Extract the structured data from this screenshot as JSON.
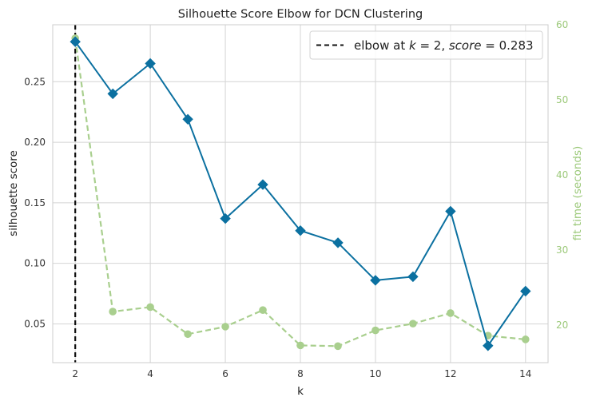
{
  "chart_data": {
    "type": "line",
    "title": "Silhouette Score Elbow for DCN Clustering",
    "xlabel": "k",
    "ylabel": "silhouette score",
    "y2label": "fit time (seconds)",
    "xlim": [
      1.4,
      14.6
    ],
    "ylim": [
      0.018,
      0.297
    ],
    "y2lim": [
      15,
      60
    ],
    "xticks": [
      2,
      4,
      6,
      8,
      10,
      12,
      14
    ],
    "yticks": [
      0.05,
      0.1,
      0.15,
      0.2,
      0.25
    ],
    "ytick_labels": [
      "0.05",
      "0.10",
      "0.15",
      "0.20",
      "0.25"
    ],
    "y2ticks": [
      20,
      30,
      40,
      50,
      60
    ],
    "grid": true,
    "legend_position": "top-right",
    "x": [
      2,
      3,
      4,
      5,
      6,
      7,
      8,
      9,
      10,
      11,
      12,
      13,
      14
    ],
    "series": [
      {
        "name": "silhouette score",
        "axis": "left",
        "color": "#0b70a0",
        "marker": "diamond",
        "values": [
          0.283,
          0.24,
          0.265,
          0.219,
          0.137,
          0.165,
          0.127,
          0.117,
          0.086,
          0.089,
          0.143,
          0.032,
          0.077
        ]
      },
      {
        "name": "fit time (seconds)",
        "axis": "right",
        "color": "#a9cf8e",
        "marker": "circle",
        "dashed": true,
        "values": [
          58.2,
          21.8,
          22.4,
          18.8,
          19.8,
          22.0,
          17.3,
          17.2,
          19.3,
          20.2,
          21.6,
          18.6,
          18.1
        ]
      }
    ],
    "elbow": {
      "k": 2,
      "color": "#111111",
      "legend_prefix": "elbow at ",
      "legend_k_symbol": "k",
      "legend_k_value": " = 2, ",
      "legend_score_symbol": "score",
      "legend_score_value": " = 0.283"
    }
  }
}
